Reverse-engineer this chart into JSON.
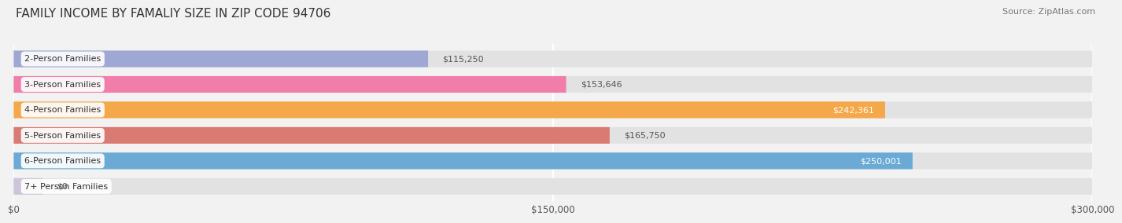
{
  "title": "FAMILY INCOME BY FAMALIY SIZE IN ZIP CODE 94706",
  "source": "Source: ZipAtlas.com",
  "categories": [
    "2-Person Families",
    "3-Person Families",
    "4-Person Families",
    "5-Person Families",
    "6-Person Families",
    "7+ Person Families"
  ],
  "values": [
    115250,
    153646,
    242361,
    165750,
    250001,
    0
  ],
  "bar_colors": [
    "#9fa8d5",
    "#f07daa",
    "#f5a84a",
    "#d97b72",
    "#6aaad4",
    "#c5b8d8"
  ],
  "value_labels": [
    "$115,250",
    "$153,646",
    "$242,361",
    "$165,750",
    "$250,001",
    "$0"
  ],
  "label_inside": [
    false,
    false,
    true,
    false,
    true,
    false
  ],
  "xlim": [
    0,
    300000
  ],
  "xticks": [
    0,
    150000,
    300000
  ],
  "xticklabels": [
    "$0",
    "$150,000",
    "$300,000"
  ],
  "bg_color": "#f2f2f2",
  "bar_bg_color": "#e2e2e2",
  "title_fontsize": 11,
  "source_fontsize": 8,
  "label_fontsize": 8,
  "value_fontsize": 8,
  "tick_fontsize": 8.5
}
